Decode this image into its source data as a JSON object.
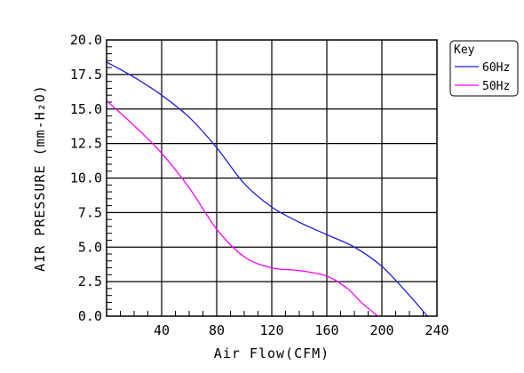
{
  "chart_data": {
    "type": "line",
    "xlabel": "Air Flow(CFM)",
    "ylabel": "AIR PRESSURE (mm-H₂O)",
    "xlim": [
      0,
      240
    ],
    "ylim": [
      0,
      20
    ],
    "x_ticks": [
      40,
      80,
      120,
      160,
      200,
      240
    ],
    "y_ticks": [
      0,
      2.5,
      5,
      7.5,
      10,
      12.5,
      15,
      17.5,
      20
    ],
    "y_tick_labels": [
      "0.0",
      "2.5",
      "5.0",
      "7.5",
      "10.0",
      "12.5",
      "15.0",
      "17.5",
      "20.0"
    ],
    "grid": true,
    "legend": {
      "title": "Key",
      "placement": "top-right-outside"
    },
    "series": [
      {
        "name": "60Hz",
        "color": "#1f1fe0",
        "x": [
          0,
          20,
          40,
          60,
          80,
          100,
          120,
          140,
          160,
          180,
          200,
          220,
          233
        ],
        "y": [
          18.4,
          17.3,
          16.0,
          14.4,
          12.2,
          9.6,
          7.9,
          6.8,
          5.9,
          5.0,
          3.6,
          1.5,
          0.0
        ]
      },
      {
        "name": "50Hz",
        "color": "#ff00ff",
        "x": [
          0,
          20,
          40,
          60,
          80,
          100,
          120,
          140,
          160,
          175,
          185,
          197
        ],
        "y": [
          15.6,
          13.8,
          11.8,
          9.3,
          6.3,
          4.3,
          3.5,
          3.3,
          2.9,
          2.0,
          1.0,
          0.0
        ]
      }
    ]
  }
}
